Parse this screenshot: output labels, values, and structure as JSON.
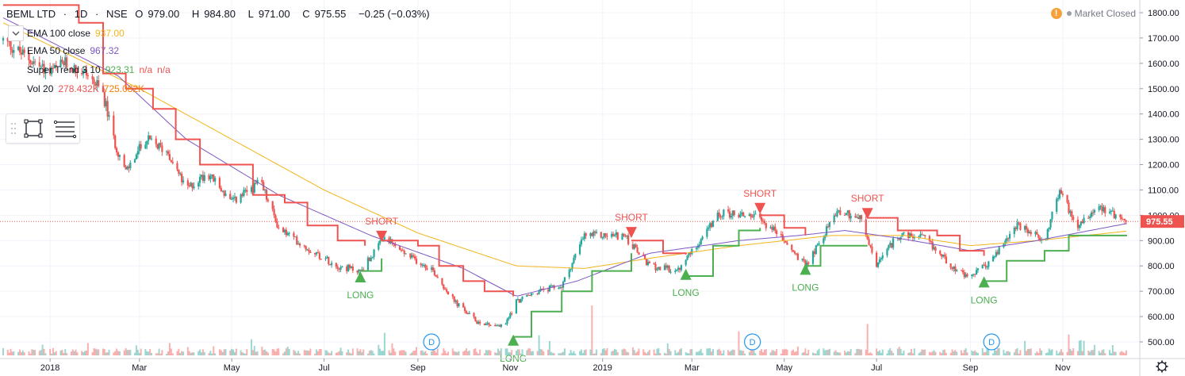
{
  "header": {
    "symbol": "BEML LTD",
    "sep1": "·",
    "interval": "1D",
    "sep2": "·",
    "exchange": "NSE",
    "o_label": "O",
    "o": "979.00",
    "h_label": "H",
    "h": "984.80",
    "l_label": "L",
    "l": "971.00",
    "c_label": "C",
    "c": "975.55",
    "change": "−0.25 (−0.03%)"
  },
  "market_status": {
    "icon": "warning-icon",
    "text": "Market Closed"
  },
  "indicators": [
    {
      "name": "EMA 100 close",
      "values": [
        "937.00"
      ],
      "color": "#f3b51b",
      "toggle": "chevron-down-icon"
    },
    {
      "name": "EMA 50 close",
      "values": [
        "967.32"
      ],
      "color": "#7e57c2"
    },
    {
      "name": "Super Trend 3 10",
      "values": [
        "923.31",
        "n/a",
        "n/a"
      ],
      "value_colors": [
        "#4caf50",
        "#ef5350",
        "#ef5350"
      ]
    },
    {
      "name": "Vol 20",
      "values": [
        "278.432K",
        "725.082K"
      ],
      "value_colors": [
        "#ef5350",
        "#f57c00"
      ]
    }
  ],
  "toolbox": {
    "icons": [
      "drag-handle-icon",
      "rectangle-icon",
      "list-lines-icon"
    ]
  },
  "colors": {
    "up": "#26a69a",
    "down": "#ef5350",
    "ema100": "#f3b51b",
    "ema50": "#7e57c2",
    "st_up": "#4caf50",
    "st_down": "#ef5350",
    "grid": "#f0f3fa",
    "price_line": "#ef5350"
  },
  "chart_data": {
    "type": "candlestick",
    "symbol": "BEML LTD",
    "interval": "1D",
    "exchange": "NSE",
    "ylim": [
      440,
      1830
    ],
    "y_ticks": [
      "500.00",
      "600.00",
      "700.00",
      "800.00",
      "900.00",
      "1000.00",
      "1100.00",
      "1200.00",
      "1300.00",
      "1400.00",
      "1500.00",
      "1600.00",
      "1700.00",
      "1800.00"
    ],
    "x_ticks": [
      "2018",
      "Mar",
      "May",
      "Jul",
      "Sep",
      "Nov",
      "2019",
      "Mar",
      "May",
      "Jul",
      "Sep",
      "Nov"
    ],
    "x_tick_dates": [
      "2018-01-01",
      "2018-03-01",
      "2018-05-01",
      "2018-07-01",
      "2018-09-01",
      "2018-11-01",
      "2019-01-01",
      "2019-03-01",
      "2019-05-01",
      "2019-07-01",
      "2019-09-01",
      "2019-11-01"
    ],
    "last_price": 975.55,
    "last_price_label": "975.55",
    "price_keypoints": [
      [
        "2017-12-01",
        1690
      ],
      [
        "2017-12-15",
        1630
      ],
      [
        "2018-01-01",
        1560
      ],
      [
        "2018-01-10",
        1600
      ],
      [
        "2018-01-25",
        1560
      ],
      [
        "2018-02-05",
        1480
      ],
      [
        "2018-02-12",
        1300
      ],
      [
        "2018-02-20",
        1170
      ],
      [
        "2018-03-05",
        1300
      ],
      [
        "2018-03-20",
        1250
      ],
      [
        "2018-04-01",
        1100
      ],
      [
        "2018-04-15",
        1170
      ],
      [
        "2018-05-01",
        1050
      ],
      [
        "2018-05-20",
        1130
      ],
      [
        "2018-06-01",
        950
      ],
      [
        "2018-06-20",
        870
      ],
      [
        "2018-07-10",
        800
      ],
      [
        "2018-07-25",
        780
      ],
      [
        "2018-08-10",
        910
      ],
      [
        "2018-08-25",
        840
      ],
      [
        "2018-09-10",
        790
      ],
      [
        "2018-09-25",
        660
      ],
      [
        "2018-10-10",
        580
      ],
      [
        "2018-10-28",
        560
      ],
      [
        "2018-11-05",
        660
      ],
      [
        "2018-11-20",
        700
      ],
      [
        "2018-12-05",
        720
      ],
      [
        "2018-12-20",
        920
      ],
      [
        "2019-01-15",
        920
      ],
      [
        "2019-02-01",
        800
      ],
      [
        "2019-02-20",
        780
      ],
      [
        "2019-03-01",
        860
      ],
      [
        "2019-03-20",
        1010
      ],
      [
        "2019-04-10",
        1000
      ],
      [
        "2019-04-25",
        940
      ],
      [
        "2019-05-15",
        800
      ],
      [
        "2019-05-25",
        900
      ],
      [
        "2019-06-05",
        1020
      ],
      [
        "2019-06-20",
        990
      ],
      [
        "2019-07-01",
        800
      ],
      [
        "2019-07-15",
        920
      ],
      [
        "2019-08-01",
        910
      ],
      [
        "2019-08-20",
        800
      ],
      [
        "2019-08-30",
        750
      ],
      [
        "2019-09-15",
        820
      ],
      [
        "2019-10-01",
        960
      ],
      [
        "2019-10-20",
        900
      ],
      [
        "2019-10-30",
        1100
      ],
      [
        "2019-11-10",
        960
      ],
      [
        "2019-11-25",
        1040
      ],
      [
        "2019-12-13",
        975
      ]
    ],
    "volume_max": 650,
    "volume_spikes": [
      [
        "2018-05-20",
        650
      ],
      [
        "2018-08-10",
        280
      ],
      [
        "2018-11-20",
        250
      ],
      [
        "2018-12-15",
        350
      ],
      [
        "2018-12-25",
        620
      ],
      [
        "2019-04-01",
        300
      ],
      [
        "2019-06-25",
        390
      ],
      [
        "2019-10-20",
        300
      ],
      [
        "2019-11-05",
        260
      ]
    ],
    "ema50_keypoints": [
      [
        "2017-12-01",
        1780
      ],
      [
        "2018-02-15",
        1550
      ],
      [
        "2018-04-01",
        1300
      ],
      [
        "2018-06-01",
        1080
      ],
      [
        "2018-08-01",
        920
      ],
      [
        "2018-10-01",
        790
      ],
      [
        "2018-11-05",
        680
      ],
      [
        "2018-12-15",
        740
      ],
      [
        "2019-02-01",
        850
      ],
      [
        "2019-04-01",
        900
      ],
      [
        "2019-05-10",
        920
      ],
      [
        "2019-06-10",
        940
      ],
      [
        "2019-07-15",
        910
      ],
      [
        "2019-09-01",
        860
      ],
      [
        "2019-10-15",
        900
      ],
      [
        "2019-12-13",
        967
      ]
    ],
    "ema100_keypoints": [
      [
        "2017-12-01",
        1760
      ],
      [
        "2018-03-01",
        1500
      ],
      [
        "2018-05-01",
        1300
      ],
      [
        "2018-07-01",
        1100
      ],
      [
        "2018-09-01",
        930
      ],
      [
        "2018-11-05",
        800
      ],
      [
        "2018-12-20",
        790
      ],
      [
        "2019-02-01",
        830
      ],
      [
        "2019-04-01",
        880
      ],
      [
        "2019-06-01",
        920
      ],
      [
        "2019-07-20",
        920
      ],
      [
        "2019-09-01",
        880
      ],
      [
        "2019-10-15",
        900
      ],
      [
        "2019-12-13",
        937
      ]
    ],
    "supertrend_red_segments": [
      [
        [
          "2017-12-01",
          1830
        ],
        [
          "2018-01-20",
          1760
        ],
        [
          "2018-02-05",
          1560
        ],
        [
          "2018-02-20",
          1500
        ],
        [
          "2018-03-10",
          1420
        ],
        [
          "2018-03-25",
          1300
        ],
        [
          "2018-04-10",
          1200
        ],
        [
          "2018-05-01",
          1200
        ],
        [
          "2018-05-15",
          1080
        ],
        [
          "2018-06-05",
          1050
        ],
        [
          "2018-06-20",
          960
        ],
        [
          "2018-07-10",
          900
        ],
        [
          "2018-07-28",
          880
        ]
      ],
      [
        [
          "2018-08-08",
          900
        ],
        [
          "2018-09-01",
          880
        ],
        [
          "2018-09-15",
          800
        ],
        [
          "2018-10-01",
          740
        ],
        [
          "2018-10-15",
          700
        ],
        [
          "2018-11-03",
          680
        ]
      ],
      [
        [
          "2019-01-20",
          900
        ],
        [
          "2019-02-10",
          850
        ],
        [
          "2019-02-25",
          845
        ]
      ],
      [
        [
          "2019-04-15",
          1000
        ],
        [
          "2019-05-01",
          950
        ],
        [
          "2019-05-15",
          920
        ]
      ],
      [
        [
          "2019-06-25",
          990
        ],
        [
          "2019-07-15",
          940
        ],
        [
          "2019-08-10",
          920
        ],
        [
          "2019-08-25",
          860
        ],
        [
          "2019-09-10",
          840
        ]
      ]
    ],
    "supertrend_green_segments": [
      [
        [
          "2018-07-25",
          780
        ],
        [
          "2018-08-08",
          830
        ]
      ],
      [
        [
          "2018-11-03",
          520
        ],
        [
          "2018-11-15",
          620
        ],
        [
          "2018-12-05",
          700
        ],
        [
          "2018-12-25",
          780
        ],
        [
          "2019-01-20",
          850
        ]
      ],
      [
        [
          "2019-02-25",
          760
        ],
        [
          "2019-03-15",
          880
        ],
        [
          "2019-04-01",
          940
        ],
        [
          "2019-04-15",
          950
        ]
      ],
      [
        [
          "2019-05-15",
          800
        ],
        [
          "2019-05-25",
          880
        ],
        [
          "2019-06-25",
          880
        ]
      ],
      [
        [
          "2019-09-10",
          740
        ],
        [
          "2019-09-25",
          820
        ],
        [
          "2019-10-20",
          860
        ],
        [
          "2019-11-05",
          920
        ],
        [
          "2019-12-13",
          923
        ]
      ]
    ],
    "signals": [
      {
        "type": "LONG",
        "date": "2018-07-25",
        "price": 760,
        "label": "LONG"
      },
      {
        "type": "SHORT",
        "date": "2018-08-08",
        "price": 920,
        "label": "SHORT"
      },
      {
        "type": "LONG",
        "date": "2018-11-03",
        "price": 510,
        "label": "LONG"
      },
      {
        "type": "SHORT",
        "date": "2019-01-20",
        "price": 935,
        "label": "SHORT"
      },
      {
        "type": "LONG",
        "date": "2019-02-25",
        "price": 770,
        "label": "LONG"
      },
      {
        "type": "SHORT",
        "date": "2019-04-15",
        "price": 1030,
        "label": "SHORT"
      },
      {
        "type": "LONG",
        "date": "2019-05-15",
        "price": 790,
        "label": "LONG"
      },
      {
        "type": "SHORT",
        "date": "2019-06-25",
        "price": 1010,
        "label": "SHORT"
      },
      {
        "type": "LONG",
        "date": "2019-09-10",
        "price": 740,
        "label": "LONG"
      }
    ],
    "dividend_markers": [
      {
        "date": "2018-09-10",
        "label": "D"
      },
      {
        "date": "2019-04-10",
        "label": "D"
      },
      {
        "date": "2019-09-15",
        "label": "D"
      }
    ]
  }
}
